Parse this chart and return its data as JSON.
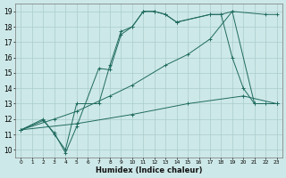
{
  "xlabel": "Humidex (Indice chaleur)",
  "background_color": "#cde8e8",
  "grid_color": "#aacccc",
  "line_color": "#1f6b5e",
  "xlim": [
    -0.5,
    23.5
  ],
  "ylim": [
    9.5,
    19.5
  ],
  "xticks": [
    0,
    1,
    2,
    3,
    4,
    5,
    6,
    7,
    8,
    9,
    10,
    11,
    12,
    13,
    14,
    15,
    16,
    17,
    18,
    19,
    20,
    21,
    22,
    23
  ],
  "yticks": [
    10,
    11,
    12,
    13,
    14,
    15,
    16,
    17,
    18,
    19
  ],
  "series": [
    {
      "x": [
        0,
        2,
        3,
        4,
        5,
        7,
        8,
        9,
        10,
        11,
        12,
        13,
        14,
        17,
        18,
        19,
        22,
        23
      ],
      "y": [
        11.3,
        11.9,
        11.1,
        9.8,
        11.5,
        15.3,
        15.2,
        17.5,
        18.0,
        19.0,
        19.0,
        18.8,
        18.3,
        18.8,
        18.8,
        19.0,
        18.8,
        18.8
      ]
    },
    {
      "x": [
        0,
        2,
        3,
        4,
        5,
        7,
        8,
        9,
        10,
        11,
        12,
        13,
        14,
        17,
        18,
        19,
        20,
        21,
        22,
        23
      ],
      "y": [
        11.3,
        12.0,
        11.0,
        10.0,
        13.0,
        13.0,
        15.5,
        17.7,
        18.0,
        19.0,
        19.0,
        18.8,
        18.3,
        18.8,
        18.8,
        16.0,
        14.0,
        13.0,
        13.0,
        13.0
      ]
    },
    {
      "x": [
        0,
        3,
        5,
        8,
        10,
        13,
        15,
        17,
        19,
        21,
        23
      ],
      "y": [
        11.3,
        12.0,
        12.5,
        13.5,
        14.2,
        15.5,
        16.2,
        17.2,
        19.0,
        13.0,
        13.0
      ]
    },
    {
      "x": [
        0,
        5,
        10,
        15,
        20,
        23
      ],
      "y": [
        11.3,
        11.7,
        12.3,
        13.0,
        13.5,
        13.0
      ]
    }
  ]
}
